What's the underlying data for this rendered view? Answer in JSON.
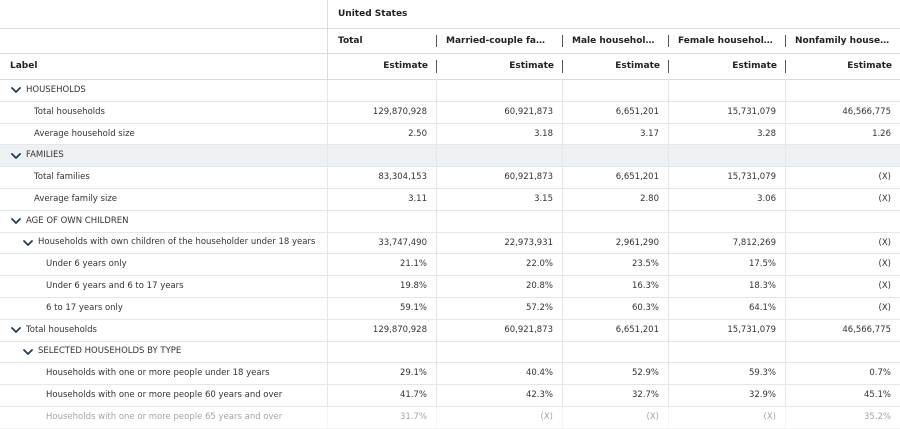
{
  "header": {
    "label": "Label",
    "group": "United States",
    "columns": [
      "Total",
      "Married-couple family...",
      "Male householder...",
      "Female householder...",
      "Nonfamily household"
    ],
    "sub": [
      "Estimate",
      "Estimate",
      "Estimate",
      "Estimate",
      "Estimate"
    ]
  },
  "rows": [
    {
      "label": "HOUSEHOLDS",
      "level": 0,
      "chevron": true,
      "section": true,
      "values": [
        "",
        "",
        "",
        "",
        ""
      ]
    },
    {
      "label": "Total households",
      "level": 1,
      "values": [
        "129,870,928",
        "60,921,873",
        "6,651,201",
        "15,731,079",
        "46,566,775"
      ]
    },
    {
      "label": "Average household size",
      "level": 1,
      "values": [
        "2.50",
        "3.18",
        "3.17",
        "3.28",
        "1.26"
      ]
    },
    {
      "label": "FAMILIES",
      "level": 0,
      "chevron": true,
      "section": true,
      "shade": true,
      "values": [
        "",
        "",
        "",
        "",
        ""
      ]
    },
    {
      "label": "Total families",
      "level": 1,
      "values": [
        "83,304,153",
        "60,921,873",
        "6,651,201",
        "15,731,079",
        "(X)"
      ]
    },
    {
      "label": "Average family size",
      "level": 1,
      "values": [
        "3.11",
        "3.15",
        "2.80",
        "3.06",
        "(X)"
      ]
    },
    {
      "label": "AGE OF OWN CHILDREN",
      "level": 0,
      "chevron": true,
      "section": true,
      "values": [
        "",
        "",
        "",
        "",
        ""
      ]
    },
    {
      "label": "Households with own children of the householder under 18 years",
      "level": 1,
      "chevron": true,
      "values": [
        "33,747,490",
        "22,973,931",
        "2,961,290",
        "7,812,269",
        "(X)"
      ]
    },
    {
      "label": "Under 6 years only",
      "level": 2,
      "values": [
        "21.1%",
        "22.0%",
        "23.5%",
        "17.5%",
        "(X)"
      ]
    },
    {
      "label": "Under 6 years and 6 to 17 years",
      "level": 2,
      "values": [
        "19.8%",
        "20.8%",
        "16.3%",
        "18.3%",
        "(X)"
      ]
    },
    {
      "label": "6 to 17 years only",
      "level": 2,
      "values": [
        "59.1%",
        "57.2%",
        "60.3%",
        "64.1%",
        "(X)"
      ]
    },
    {
      "label": "Total households",
      "level": 0,
      "chevron": true,
      "values": [
        "129,870,928",
        "60,921,873",
        "6,651,201",
        "15,731,079",
        "46,566,775"
      ]
    },
    {
      "label": "SELECTED HOUSEHOLDS BY TYPE",
      "level": 1,
      "chevron": true,
      "section": true,
      "values": [
        "",
        "",
        "",
        "",
        ""
      ]
    },
    {
      "label": "Households with one or more people under 18 years",
      "level": 2,
      "values": [
        "29.1%",
        "40.4%",
        "52.9%",
        "59.3%",
        "0.7%"
      ]
    },
    {
      "label": "Households with one or more people 60 years and over",
      "level": 2,
      "values": [
        "41.7%",
        "42.3%",
        "32.7%",
        "32.9%",
        "45.1%"
      ]
    },
    {
      "label": "Households with one or more people 65 years and over",
      "level": 2,
      "faded": true,
      "values": [
        "31.7%",
        "(X)",
        "(X)",
        "(X)",
        "35.2%"
      ]
    }
  ],
  "icons": {
    "expand": "chevron-down-icon"
  },
  "colors": {
    "chevron": "#1f3a5f",
    "shade": "#eef1f3",
    "grid": "#e3e7ea"
  }
}
